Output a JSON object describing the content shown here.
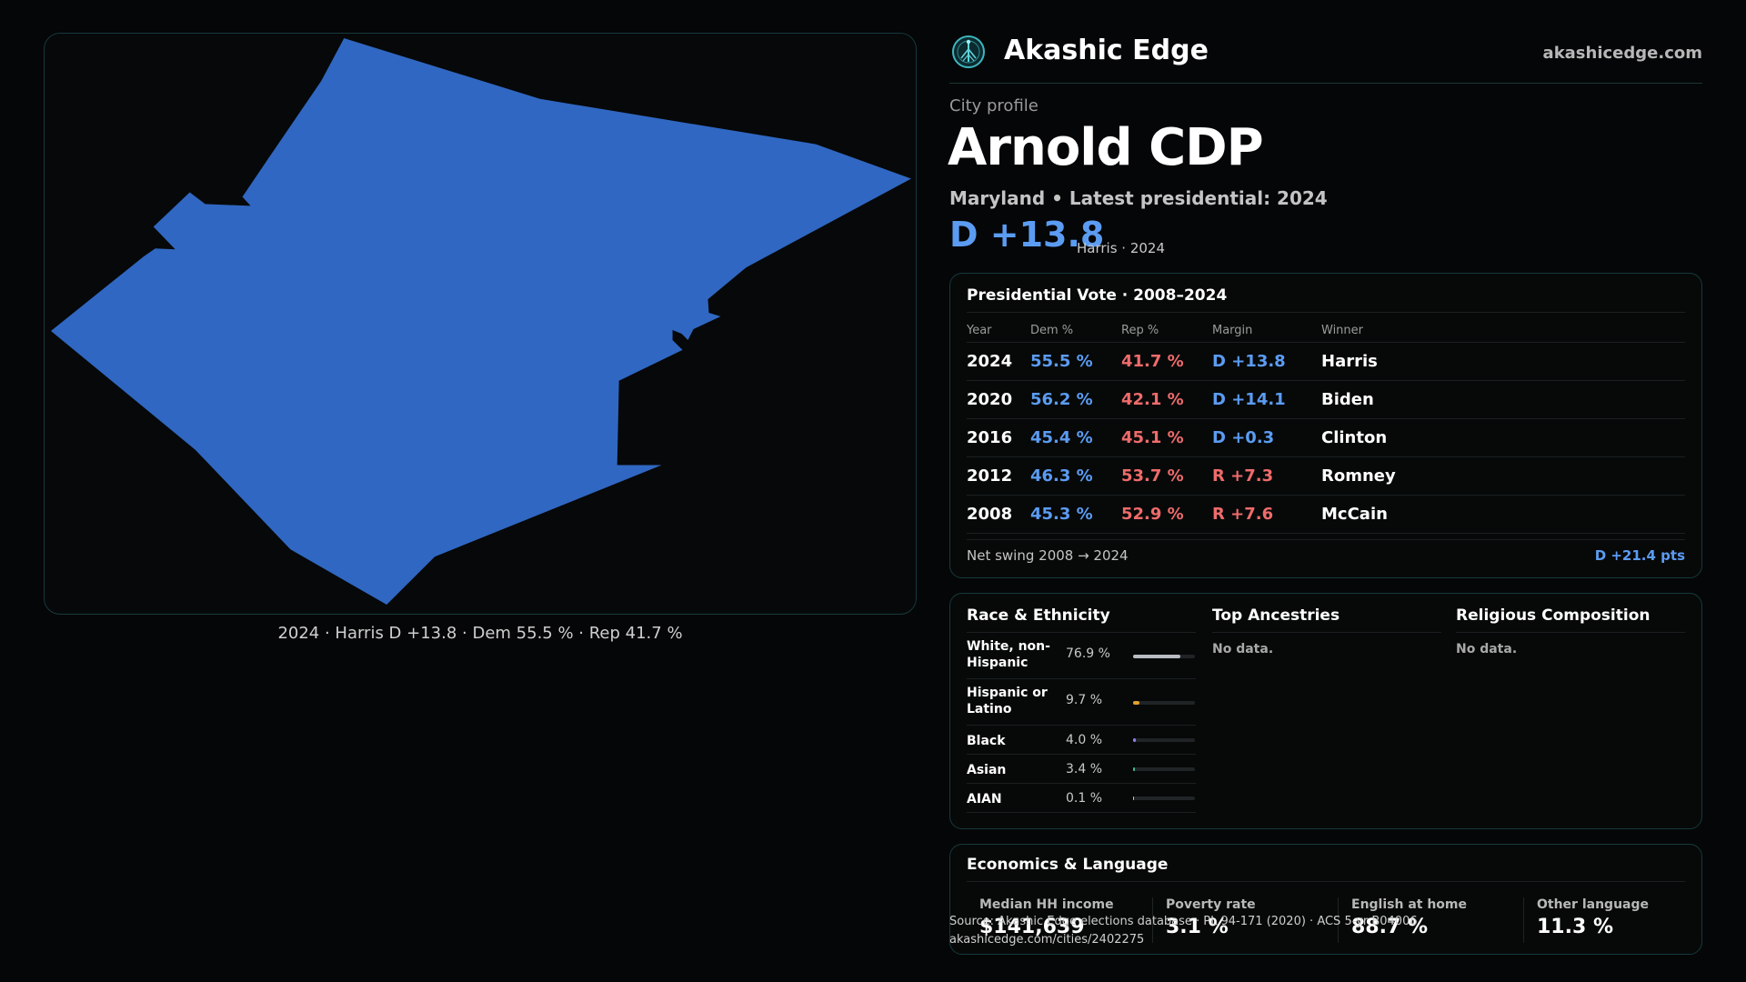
{
  "brand": {
    "name": "Akashic Edge",
    "url": "akashicedge.com",
    "logo_icon": "tree-network-logo"
  },
  "profile": {
    "eyebrow": "City profile",
    "title": "Arnold CDP",
    "subtitle": "Maryland • Latest presidential: 2024",
    "headline_margin": "D +13.8",
    "headline_note": "Harris · 2024"
  },
  "map": {
    "caption": "2024 · Harris D +13.8 · Dem 55.5 % · Rep 41.7 %",
    "fill_color": "#3067c2",
    "border_color": "#17393d"
  },
  "vote": {
    "title": "Presidential Vote · 2008–2024",
    "headers": {
      "year": "Year",
      "dem": "Dem %",
      "rep": "Rep %",
      "margin": "Margin",
      "winner": "Winner"
    },
    "rows": [
      {
        "year": "2024",
        "dem": "55.5 %",
        "rep": "41.7 %",
        "margin": "D +13.8",
        "party": "D",
        "winner": "Harris"
      },
      {
        "year": "2020",
        "dem": "56.2 %",
        "rep": "42.1 %",
        "margin": "D +14.1",
        "party": "D",
        "winner": "Biden"
      },
      {
        "year": "2016",
        "dem": "45.4 %",
        "rep": "45.1 %",
        "margin": "D +0.3",
        "party": "D",
        "winner": "Clinton"
      },
      {
        "year": "2012",
        "dem": "46.3 %",
        "rep": "53.7 %",
        "margin": "R +7.3",
        "party": "R",
        "winner": "Romney"
      },
      {
        "year": "2008",
        "dem": "45.3 %",
        "rep": "52.9 %",
        "margin": "R +7.6",
        "party": "R",
        "winner": "McCain"
      }
    ],
    "swing_label": "Net swing 2008 → 2024",
    "swing_value": "D +21.4 pts"
  },
  "race": {
    "title": "Race & Ethnicity",
    "rows": [
      {
        "label": "White, non-Hispanic",
        "pct": "76.9 %",
        "fraction": 0.769,
        "color": "#b9bcc2",
        "tall": true
      },
      {
        "label": "Hispanic or Latino",
        "pct": "9.7 %",
        "fraction": 0.097,
        "color": "#e0a12e",
        "tall": true
      },
      {
        "label": "Black",
        "pct": "4.0 %",
        "fraction": 0.04,
        "color": "#8e7fe6",
        "tall": false
      },
      {
        "label": "Asian",
        "pct": "3.4 %",
        "fraction": 0.034,
        "color": "#3fbf8f",
        "tall": false
      },
      {
        "label": "AIAN",
        "pct": "0.1 %",
        "fraction": 0.001,
        "color": "#c0c0c0",
        "tall": false
      }
    ]
  },
  "ancestries": {
    "title": "Top Ancestries",
    "empty": "No data."
  },
  "religion": {
    "title": "Religious Composition",
    "empty": "No data."
  },
  "economics": {
    "title": "Economics & Language",
    "stats": [
      {
        "label": "Median HH income",
        "value": "$141,639"
      },
      {
        "label": "Poverty rate",
        "value": "3.1 %"
      },
      {
        "label": "English at home",
        "value": "88.7 %"
      },
      {
        "label": "Other language",
        "value": "11.3 %"
      }
    ]
  },
  "source": {
    "line1": "Source: Akashic Edge elections database · PL 94-171 (2020) · ACS 5-yr B04006",
    "line2": "akashicedge.com/cities/2402275"
  },
  "colors": {
    "dem": "#5b9cf2",
    "rep": "#ef6b6b",
    "accent_border": "#17393d"
  }
}
